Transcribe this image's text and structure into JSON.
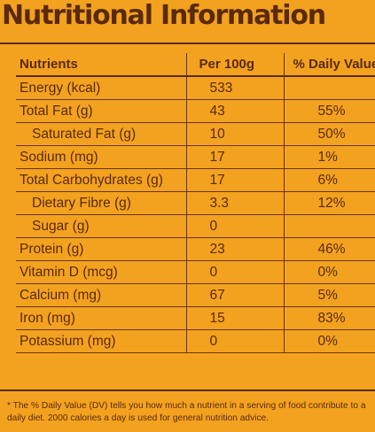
{
  "title": "Nutritional Information",
  "table": {
    "headers": {
      "nutrient": "Nutrients",
      "per100g": "Per 100g",
      "daily_value": "% Daily Value*"
    },
    "rows": [
      {
        "name": "Energy (kcal)",
        "per100g": "533",
        "dv": "",
        "indent": false
      },
      {
        "name": "Total Fat (g)",
        "per100g": "43",
        "dv": "55%",
        "indent": false
      },
      {
        "name": "Saturated Fat (g)",
        "per100g": "10",
        "dv": "50%",
        "indent": true
      },
      {
        "name": "Sodium (mg)",
        "per100g": "17",
        "dv": "1%",
        "indent": false
      },
      {
        "name": "Total Carbohydrates (g)",
        "per100g": "17",
        "dv": "6%",
        "indent": false
      },
      {
        "name": "Dietary Fibre (g)",
        "per100g": "3.3",
        "dv": "12%",
        "indent": true
      },
      {
        "name": "Sugar (g)",
        "per100g": "0",
        "dv": "",
        "indent": true
      },
      {
        "name": "Protein (g)",
        "per100g": "23",
        "dv": "46%",
        "indent": false
      },
      {
        "name": "Vitamin D (mcg)",
        "per100g": "0",
        "dv": "0%",
        "indent": false
      },
      {
        "name": "Calcium (mg)",
        "per100g": "67",
        "dv": "5%",
        "indent": false
      },
      {
        "name": "Iron (mg)",
        "per100g": "15",
        "dv": "83%",
        "indent": false
      },
      {
        "name": "Potassium (mg)",
        "per100g": "0",
        "dv": "0%",
        "indent": false
      }
    ]
  },
  "footnote": "* The % Daily Value (DV) tells you how much a nutrient in a serving of food contribute to a daily diet. 2000 calories a day is used for general nutrition advice.",
  "colors": {
    "background": "#f3a21f",
    "text": "#5a2a0c"
  }
}
